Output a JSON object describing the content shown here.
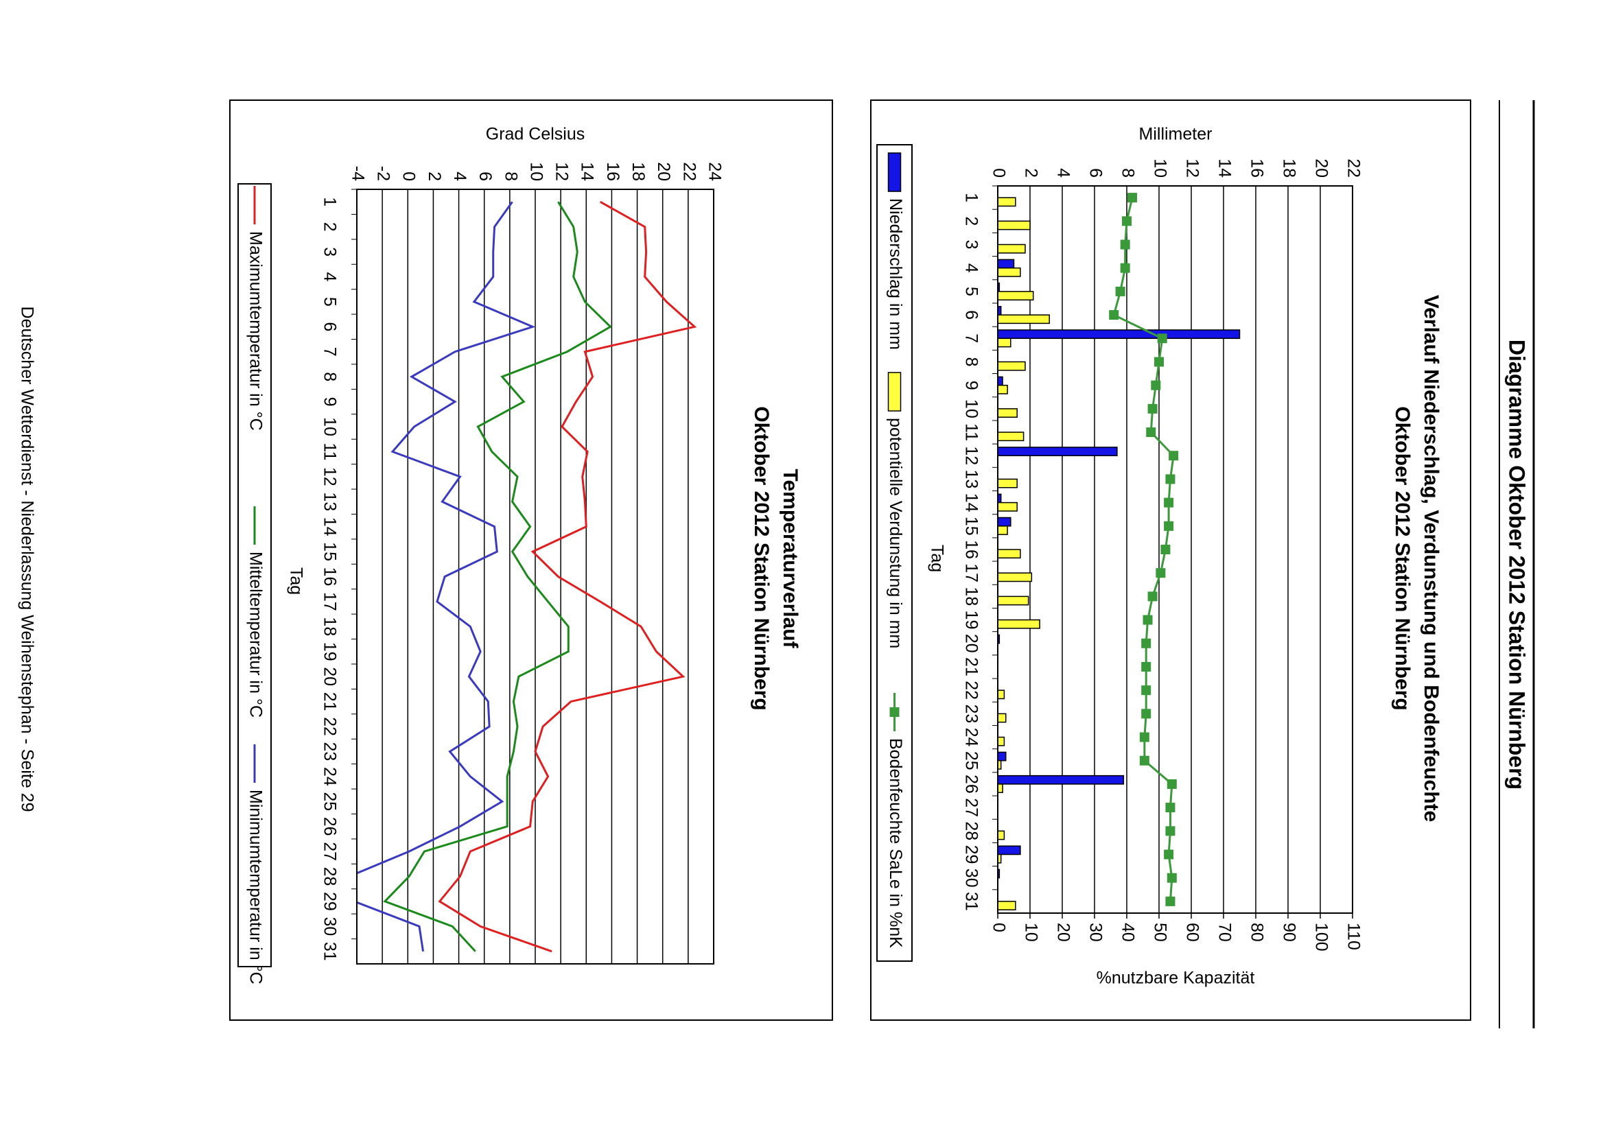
{
  "header": {
    "title": "Diagramme Oktober 2012 Station Nürnberg"
  },
  "footer": "Deutscher Wetterdienst - Niederlassung Weihenstephan - Seite 29",
  "chart_data": [
    {
      "type": "combo",
      "title": "Verlauf Niederschlag, Verdunstung und Bodenfeuchte",
      "subtitle": "Oktober 2012 Station Nürnberg",
      "x_label": "Tag",
      "y_label": "Millimeter",
      "y2_label": "%nutzbare Kapazität",
      "categories": [
        "1",
        "2",
        "3",
        "4",
        "5",
        "6",
        "7",
        "8",
        "9",
        "10",
        "11",
        "12",
        "13",
        "14",
        "15",
        "16",
        "17",
        "18",
        "19",
        "20",
        "21",
        "22",
        "23",
        "24",
        "25",
        "26",
        "27",
        "28",
        "29",
        "30",
        "31"
      ],
      "ylim": [
        0,
        22
      ],
      "yticks": [
        0,
        2,
        4,
        6,
        8,
        10,
        12,
        14,
        16,
        18,
        20,
        22
      ],
      "y2lim": [
        0,
        110
      ],
      "y2ticks": [
        0,
        10,
        20,
        30,
        40,
        50,
        60,
        70,
        80,
        90,
        100,
        110
      ],
      "grid": true,
      "series": [
        {
          "name": "Niederschlag in mm",
          "type": "bar",
          "color": "#1414e6",
          "values": [
            0,
            0,
            0,
            1.0,
            0.1,
            0.2,
            15,
            0,
            0.3,
            0,
            0,
            7.4,
            0,
            0.2,
            0.8,
            0,
            0,
            0,
            0,
            0.1,
            0,
            0,
            0,
            0,
            0.5,
            7.8,
            0,
            0,
            1.4,
            0.1,
            0
          ]
        },
        {
          "name": "potentielle Verdunstung in mm",
          "type": "bar",
          "color": "#ffff40",
          "values": [
            1.1,
            2.0,
            1.7,
            1.4,
            2.2,
            3.2,
            0.8,
            1.7,
            0.6,
            1.2,
            1.6,
            0,
            1.2,
            1.2,
            0.6,
            1.4,
            2.1,
            1.9,
            2.6,
            0,
            0,
            0.4,
            0.5,
            0.4,
            0.2,
            0.3,
            0,
            0.4,
            0.2,
            0,
            1.1
          ]
        },
        {
          "name": "Bodenfeuchte SaLe in %nK",
          "type": "line",
          "axis": "y2",
          "color": "#3a9a3a",
          "marker": "square",
          "values": [
            41.7,
            40,
            39.5,
            39.5,
            38,
            36,
            51,
            50,
            49,
            48,
            47.5,
            54.5,
            53.5,
            53,
            53,
            52,
            50.5,
            48,
            46.5,
            46,
            46,
            46,
            46,
            45.5,
            45.5,
            54,
            53.5,
            53.5,
            53,
            54,
            53.5
          ]
        }
      ]
    },
    {
      "type": "line",
      "title": "Temperaturverlauf",
      "subtitle": "Oktober 2012 Station Nürnberg",
      "x_label": "Tag",
      "y_label": "Grad Celsius",
      "categories": [
        "1",
        "2",
        "3",
        "4",
        "5",
        "6",
        "7",
        "8",
        "9",
        "10",
        "11",
        "12",
        "13",
        "14",
        "15",
        "16",
        "17",
        "18",
        "19",
        "20",
        "21",
        "22",
        "23",
        "24",
        "25",
        "26",
        "27",
        "28",
        "29",
        "30",
        "31"
      ],
      "ylim": [
        -4,
        24
      ],
      "yticks": [
        -4,
        -2,
        0,
        2,
        4,
        6,
        8,
        10,
        12,
        14,
        16,
        18,
        20,
        22,
        24
      ],
      "grid": true,
      "series": [
        {
          "name": "Maximumtemperatur in °C",
          "type": "line",
          "color": "#e02020",
          "values": [
            15.1,
            18.6,
            18.7,
            18.6,
            20.3,
            22.5,
            13.9,
            14.5,
            13.2,
            12.1,
            14.1,
            13.7,
            13.9,
            14,
            9.8,
            11.8,
            15.1,
            18.3,
            19.5,
            21.6,
            12.8,
            10.6,
            10,
            11,
            9.8,
            9.6,
            4.9,
            4.1,
            2.5,
            5.7,
            11.3
          ]
        },
        {
          "name": "Mitteltemperatur in °C",
          "type": "line",
          "color": "#1a8a1a",
          "values": [
            11.8,
            13,
            13.3,
            13,
            13.9,
            15.9,
            12.5,
            7.4,
            9.1,
            5.5,
            6.6,
            8.6,
            8.2,
            9.6,
            8.2,
            9.4,
            11,
            12.6,
            12.6,
            8.7,
            8.3,
            8.6,
            8.3,
            7.8,
            7.8,
            7.8,
            1.3,
            0.1,
            -1.8,
            3.5,
            5.3
          ]
        },
        {
          "name": "Minimumtemperatur in °C",
          "type": "line",
          "color": "#3a3ac0",
          "values": [
            8.2,
            6.8,
            6.7,
            6.7,
            5.2,
            9.8,
            3.7,
            0.3,
            3.7,
            0.5,
            -1.2,
            4.1,
            2.7,
            6.8,
            7,
            2.9,
            2.3,
            4.9,
            5.7,
            4.8,
            6.3,
            6.4,
            3.3,
            4.9,
            7.4,
            4.1,
            0.1,
            -4.6,
            -4.2,
            0.9,
            1.2
          ]
        }
      ]
    }
  ]
}
